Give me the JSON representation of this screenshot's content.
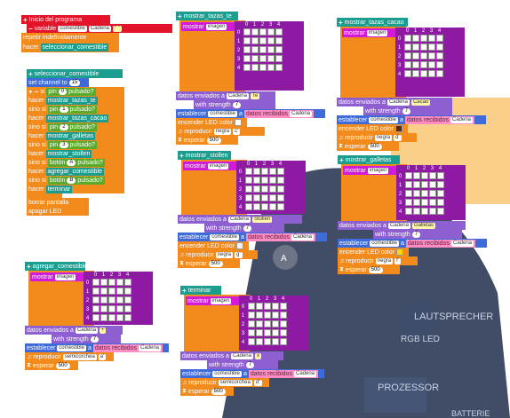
{
  "board": {
    "speaker_label": "LAUTSPRECHER",
    "rgb_label": "RGB LED",
    "processor_label": "PROZESSOR",
    "battery_label": "BATTERIE",
    "button_a_label": "A"
  },
  "matrix_cols": [
    "0",
    "1",
    "2",
    "3",
    "4"
  ],
  "program": {
    "start_label": "Inicio del programa",
    "variable_label": "variable",
    "variable_name": "comestible",
    "variable_value": "Cadena",
    "repeat_label": "repetir indefinidamente",
    "do_label": "hacer",
    "call_select": "seleccionar_comestible"
  },
  "select_fn": {
    "name": "seleccionar_comestible",
    "channel_label": "set channel to",
    "channel_value": "15",
    "if_label": "si",
    "elseif_label": "sino si",
    "do_label": "hacer",
    "pin_label": "pin",
    "pressed_label": "pulsado?",
    "button_label": "botón",
    "pin0": "0",
    "pin1": "1",
    "pin2": "2",
    "pin3": "3",
    "btnA": "A",
    "btnB": "B",
    "call_te": "mostrar_tazas_te",
    "call_cacao": "mostrar_tazas_cacao",
    "call_galletas": "mostrar_galletas",
    "call_stollen": "mostrar_stollen",
    "call_agregar": "agregar_comestible",
    "call_terminar": "terminar",
    "clear_label": "borrar pantalla",
    "led_off_label": "apagar LED"
  },
  "common": {
    "show_label": "mostrar",
    "image_label": "imagen",
    "send_label": "datos enviados a",
    "send_type": "Cadena",
    "strength_label": "with strength",
    "strength_value": "7",
    "set_label": "establecer",
    "var_name": "comestible",
    "to_label": "a",
    "recv_label": "datos recibidos",
    "recv_type": "Cadena",
    "led_label": "encender LED",
    "color_label": "color",
    "play_label": "reproducir",
    "wait_label": "esperar",
    "wait_value": "500"
  },
  "fn_te": {
    "name": "mostrar_tazas_te",
    "msg": "Te",
    "note_len": "negra",
    "note": "c'"
  },
  "fn_cacao": {
    "name": "mostrar_tazas_cacao",
    "msg": "Cacao",
    "note_len": "negra",
    "note": "d'"
  },
  "fn_stollen": {
    "name": "mostrar_stollen",
    "msg": "Stollen",
    "note_len": "negra",
    "note": "g'"
  },
  "fn_galletas": {
    "name": "mostrar_galletas",
    "msg": "Galletas",
    "note_len": "negra",
    "note": "f'"
  },
  "fn_agregar": {
    "name": "agregar_comestible",
    "msg": "+",
    "note_len": "semicorchea",
    "note": "a'"
  },
  "fn_terminar": {
    "name": "terminar",
    "msg": "x",
    "note_len": "semicorchea",
    "note": "d''"
  },
  "colors": {
    "cacao_led": "#5b2a0a",
    "galletas_led": "#ffd400",
    "stollen_led": "#f2f2f2"
  }
}
